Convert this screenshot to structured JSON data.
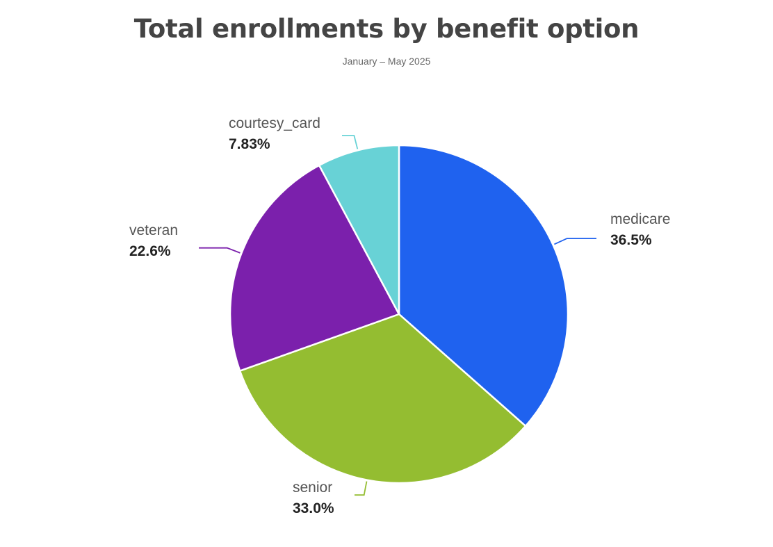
{
  "chart_data": {
    "type": "pie",
    "title": "Total enrollments by benefit option",
    "subtitle": "January – May 2025",
    "slices": [
      {
        "label": "medicare",
        "percent": 36.5,
        "percent_label": "36.5%",
        "color": "#1f62ef"
      },
      {
        "label": "senior",
        "percent": 33.0,
        "percent_label": "33.0%",
        "color": "#94bd31"
      },
      {
        "label": "veteran",
        "percent": 22.6,
        "percent_label": "22.6%",
        "color": "#7b20ac"
      },
      {
        "label": "courtesy_card",
        "percent": 7.83,
        "percent_label": "7.83%",
        "color": "#68d2d6"
      }
    ],
    "start_angle": "12 o'clock",
    "direction": "clockwise",
    "legend": "none"
  }
}
